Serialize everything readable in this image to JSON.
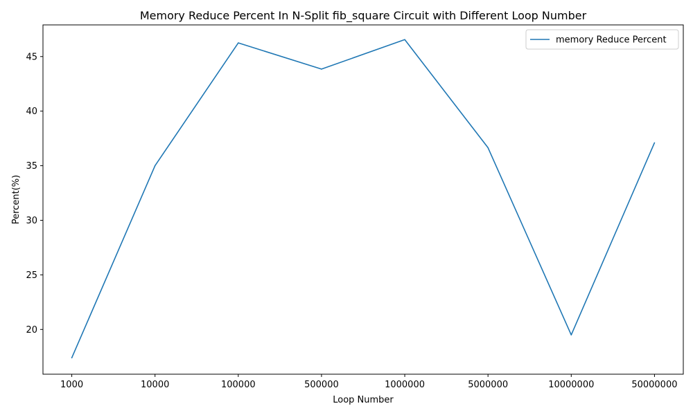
{
  "chart_data": {
    "type": "line",
    "title": "Memory Reduce Percent In N-Split fib_square Circuit with Different Loop Number",
    "xlabel": "Loop Number",
    "ylabel": "Percent(%)",
    "categories": [
      "1000",
      "10000",
      "100000",
      "500000",
      "1000000",
      "5000000",
      "10000000",
      "50000000"
    ],
    "series": [
      {
        "name": "memory Reduce Percent",
        "values": [
          17.4,
          35.0,
          46.25,
          43.85,
          46.55,
          36.65,
          19.5,
          37.1
        ],
        "color": "#1f77b4"
      }
    ],
    "ylim": [
      15.9,
      47.9
    ],
    "yticks": [
      20,
      25,
      30,
      35,
      40,
      45
    ],
    "grid": false,
    "legend_position": "top-right"
  }
}
